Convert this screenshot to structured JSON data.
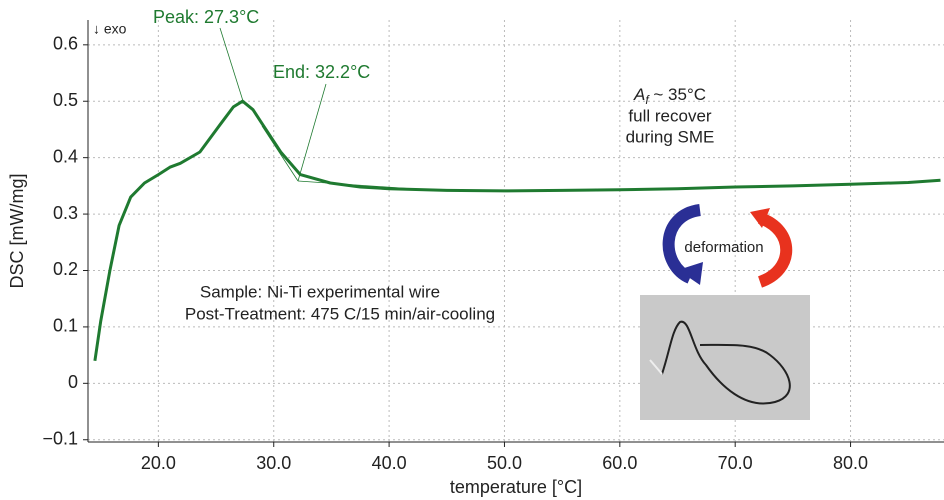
{
  "chart_data": {
    "type": "line",
    "x_label": "temperature [°C]",
    "y_label": "DSC [mW/mg]",
    "x": [
      14.5,
      15.0,
      15.8,
      16.6,
      17.6,
      18.8,
      20.0,
      21.0,
      21.9,
      23.6,
      25.4,
      26.5,
      27.3,
      28.2,
      29.0,
      30.6,
      32.3,
      34.9,
      37.5,
      40.0,
      45.0,
      50.0,
      55.0,
      60.0,
      65.0,
      70.0,
      75.0,
      80.0,
      85.0,
      87.8
    ],
    "values": [
      0.04,
      0.11,
      0.2,
      0.28,
      0.33,
      0.355,
      0.37,
      0.383,
      0.39,
      0.41,
      0.46,
      0.49,
      0.5,
      0.485,
      0.46,
      0.41,
      0.37,
      0.355,
      0.348,
      0.345,
      0.342,
      0.341,
      0.342,
      0.343,
      0.345,
      0.348,
      0.35,
      0.353,
      0.356,
      0.36
    ],
    "color": "#1f7a30",
    "xlim": [
      13.9,
      88.1
    ],
    "ylim": [
      -0.104,
      0.644
    ],
    "xticks": [
      {
        "value": 20,
        "label": "20.0"
      },
      {
        "value": 30,
        "label": "30.0"
      },
      {
        "value": 40,
        "label": "40.0"
      },
      {
        "value": 50,
        "label": "50.0"
      },
      {
        "value": 60,
        "label": "60.0"
      },
      {
        "value": 70,
        "label": "70.0"
      },
      {
        "value": 80,
        "label": "80.0"
      }
    ],
    "yticks": [
      {
        "value": -0.1,
        "label": "−0.1"
      },
      0,
      0.1,
      0.2,
      0.3,
      0.4,
      0.5,
      0.6
    ],
    "grid": true,
    "annotations": {
      "exo": "↓ exo",
      "peak": "Peak: 27.3°C",
      "end": "End: 32.2°C",
      "af": {
        "symbol": "A",
        "subscript": "f",
        "text": " ~ 35°C"
      },
      "af_line2": "full recover",
      "af_line3": "during SME",
      "deformation": "deformation",
      "sample": "Sample: Ni-Ti experimental wire",
      "treatment": "Post-Treatment: 475 C/15 min/air-cooling"
    }
  }
}
